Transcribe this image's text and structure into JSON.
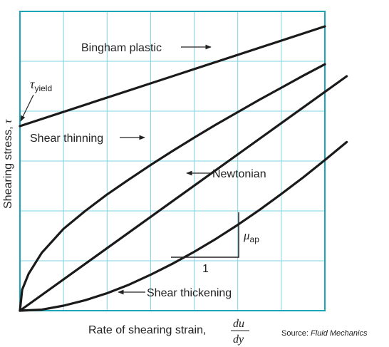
{
  "chart_data": {
    "type": "line",
    "title": "",
    "xlabel": "Rate of shearing strain,",
    "xlabel_fraction": {
      "numerator": "du",
      "denominator": "dy"
    },
    "ylabel": "Shearing stress,",
    "ylabel_symbol": "τ",
    "xlim": [
      0,
      7
    ],
    "ylim": [
      0,
      6
    ],
    "grid": true,
    "grid_color": "#7fd3e0",
    "frame_color": "#1aa6b8",
    "series": [
      {
        "name": "Bingham plastic",
        "x": [
          0,
          7
        ],
        "y": [
          3.7,
          5.7
        ]
      },
      {
        "name": "Shear thinning",
        "x": [
          0,
          0.05,
          0.2,
          0.5,
          1,
          1.5,
          2,
          2.5,
          3,
          3.5,
          4,
          4.5,
          5,
          5.5,
          6,
          6.5,
          7
        ],
        "y": [
          0,
          0.42,
          0.74,
          1.16,
          1.64,
          2.0,
          2.33,
          2.63,
          2.92,
          3.2,
          3.47,
          3.73,
          3.98,
          4.23,
          4.47,
          4.71,
          4.94
        ]
      },
      {
        "name": "Newtonian",
        "x": [
          0,
          7.5
        ],
        "y": [
          0,
          4.7
        ]
      },
      {
        "name": "Shear thickening",
        "x": [
          0,
          0.5,
          1,
          1.5,
          2,
          2.5,
          3,
          3.5,
          4,
          4.5,
          5,
          5.5,
          6,
          6.5,
          7,
          7.5
        ],
        "y": [
          0,
          0.02,
          0.1,
          0.21,
          0.35,
          0.52,
          0.72,
          0.94,
          1.18,
          1.44,
          1.72,
          2.02,
          2.34,
          2.67,
          3.02,
          3.38
        ]
      }
    ],
    "annotations": {
      "tau_yield": {
        "symbol": "τ",
        "subscript": "yield"
      },
      "mu_ap": {
        "symbol": "μ",
        "subscript": "ap"
      },
      "run": "1"
    },
    "source_prefix": "Source: ",
    "source_title": "Fluid Mechanics"
  }
}
